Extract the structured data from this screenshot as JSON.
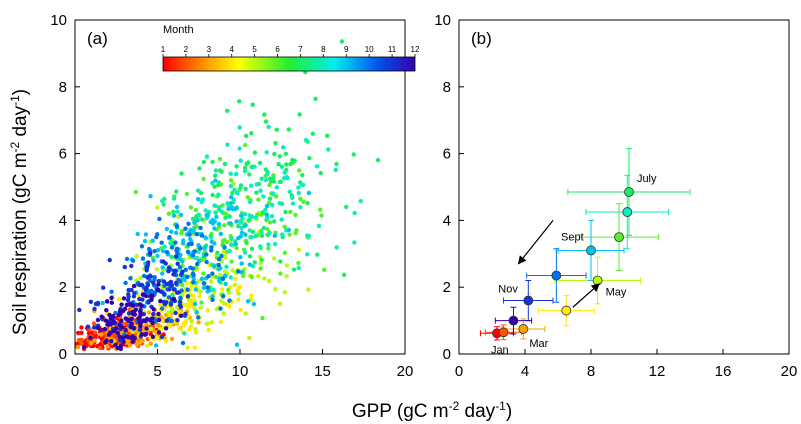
{
  "figure": {
    "xlabel_main": "GPP (gC m",
    "xlabel_sup1": "-2",
    "xlabel_mid": " day",
    "xlabel_sup2": "-1",
    "xlabel_end": ")",
    "ylabel_main": "Soil respiration (gC m",
    "ylabel_sup1": "-2",
    "ylabel_mid": " day",
    "ylabel_sup2": "-1",
    "ylabel_end": ")"
  },
  "chart_data": [
    {
      "type": "scatter",
      "panel_label": "(a)",
      "xlim": [
        0,
        20
      ],
      "ylim": [
        0,
        10
      ],
      "xticks": [
        0,
        5,
        10,
        15,
        20
      ],
      "yticks": [
        0,
        2,
        4,
        6,
        8,
        10
      ],
      "colorbar": {
        "title": "Month",
        "range": [
          1,
          12
        ],
        "ticks": [
          1,
          2,
          3,
          4,
          5,
          6,
          7,
          8,
          9,
          10,
          11,
          12
        ],
        "colormap": "rainbow"
      },
      "clusters": [
        {
          "month": 1,
          "x_mean": 2.2,
          "x_sd": 1.1,
          "y_mean": 0.55,
          "y_sd": 0.22,
          "n": 120
        },
        {
          "month": 2,
          "x_mean": 2.6,
          "x_sd": 1.2,
          "y_mean": 0.6,
          "y_sd": 0.25,
          "n": 110
        },
        {
          "month": 3,
          "x_mean": 3.9,
          "x_sd": 1.4,
          "y_mean": 0.75,
          "y_sd": 0.3,
          "n": 110
        },
        {
          "month": 4,
          "x_mean": 6.5,
          "x_sd": 1.8,
          "y_mean": 1.3,
          "y_sd": 0.5,
          "n": 110
        },
        {
          "month": 5,
          "x_mean": 8.4,
          "x_sd": 2.5,
          "y_mean": 2.2,
          "y_sd": 0.8,
          "n": 120
        },
        {
          "month": 6,
          "x_mean": 9.7,
          "x_sd": 2.5,
          "y_mean": 3.5,
          "y_sd": 1.1,
          "n": 120
        },
        {
          "month": 7,
          "x_mean": 10.3,
          "x_sd": 3.0,
          "y_mean": 4.8,
          "y_sd": 1.3,
          "n": 120
        },
        {
          "month": 8,
          "x_mean": 10.2,
          "x_sd": 2.5,
          "y_mean": 4.2,
          "y_sd": 1.1,
          "n": 120
        },
        {
          "month": 9,
          "x_mean": 8.0,
          "x_sd": 2.0,
          "y_mean": 3.1,
          "y_sd": 0.9,
          "n": 120
        },
        {
          "month": 10,
          "x_mean": 5.9,
          "x_sd": 1.8,
          "y_mean": 2.3,
          "y_sd": 0.8,
          "n": 120
        },
        {
          "month": 11,
          "x_mean": 4.2,
          "x_sd": 1.5,
          "y_mean": 1.6,
          "y_sd": 0.6,
          "n": 110
        },
        {
          "month": 12,
          "x_mean": 3.2,
          "x_sd": 1.2,
          "y_mean": 1.0,
          "y_sd": 0.4,
          "n": 110
        }
      ]
    },
    {
      "type": "scatter",
      "panel_label": "(b)",
      "xlim": [
        0,
        20
      ],
      "ylim": [
        0,
        10
      ],
      "xticks": [
        0,
        4,
        8,
        12,
        16,
        20
      ],
      "yticks": [
        0,
        2,
        4,
        6,
        8,
        10
      ],
      "points": [
        {
          "month": 1,
          "label": "Jan",
          "x": 2.3,
          "y": 0.62,
          "xerr": 1.0,
          "yerr": 0.2
        },
        {
          "month": 2,
          "label": "",
          "x": 2.7,
          "y": 0.65,
          "xerr": 1.1,
          "yerr": 0.22
        },
        {
          "month": 3,
          "label": "Mar",
          "x": 3.9,
          "y": 0.75,
          "xerr": 1.3,
          "yerr": 0.3
        },
        {
          "month": 4,
          "label": "",
          "x": 6.5,
          "y": 1.3,
          "xerr": 1.7,
          "yerr": 0.45
        },
        {
          "month": 5,
          "label": "May",
          "x": 8.4,
          "y": 2.2,
          "xerr": 2.6,
          "yerr": 0.7
        },
        {
          "month": 6,
          "label": "",
          "x": 9.7,
          "y": 3.5,
          "xerr": 2.4,
          "yerr": 1.0
        },
        {
          "month": 7,
          "label": "July",
          "x": 10.3,
          "y": 4.85,
          "xerr": 3.7,
          "yerr": 1.3
        },
        {
          "month": 8,
          "label": "",
          "x": 10.2,
          "y": 4.25,
          "xerr": 2.5,
          "yerr": 1.1
        },
        {
          "month": 9,
          "label": "Sept",
          "x": 8.0,
          "y": 3.1,
          "xerr": 2.0,
          "yerr": 0.9
        },
        {
          "month": 10,
          "label": "",
          "x": 5.9,
          "y": 2.35,
          "xerr": 1.8,
          "yerr": 0.8
        },
        {
          "month": 11,
          "label": "Nov",
          "x": 4.2,
          "y": 1.6,
          "xerr": 1.5,
          "yerr": 0.6
        },
        {
          "month": 12,
          "label": "",
          "x": 3.3,
          "y": 1.0,
          "xerr": 1.1,
          "yerr": 0.4
        }
      ],
      "arrows": [
        {
          "from": [
            5.7,
            4.0
          ],
          "to": [
            3.6,
            2.7
          ]
        },
        {
          "from": [
            6.9,
            1.4
          ],
          "to": [
            8.5,
            2.1
          ]
        }
      ]
    }
  ]
}
